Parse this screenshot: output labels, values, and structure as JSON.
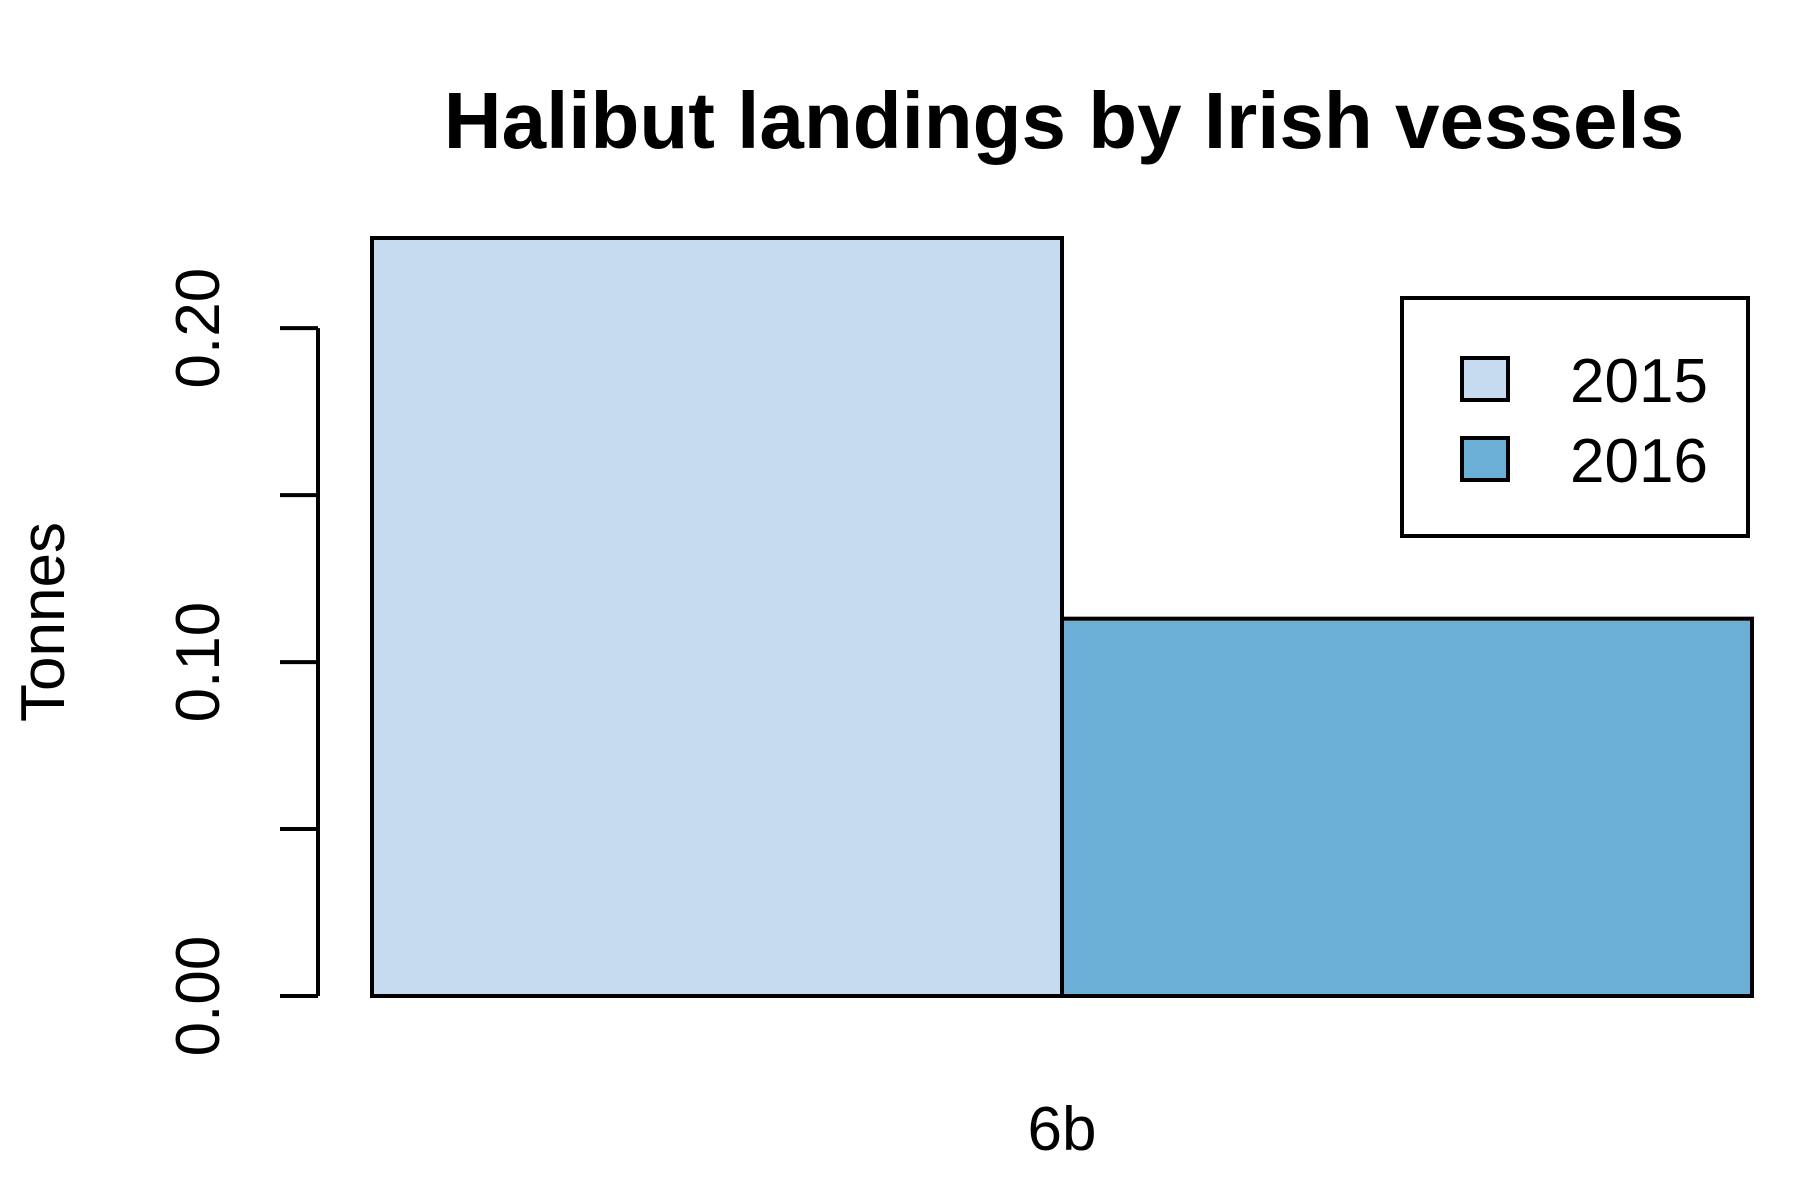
{
  "chart_data": {
    "type": "bar",
    "title": "Halibut landings by Irish vessels",
    "xlabel": "",
    "ylabel": "Tonnes",
    "categories": [
      "6b"
    ],
    "series": [
      {
        "name": "2015",
        "values": [
          0.227
        ],
        "color": "#c6dbef"
      },
      {
        "name": "2016",
        "values": [
          0.113
        ],
        "color": "#6baed6"
      }
    ],
    "ylim": [
      0,
      0.227
    ],
    "yticks": [
      0,
      0.05,
      0.1,
      0.15,
      0.2
    ],
    "ytick_labels": [
      "0.00",
      "",
      "0.10",
      "",
      "0.20"
    ],
    "legend_position": "top-right",
    "grid": false
  }
}
